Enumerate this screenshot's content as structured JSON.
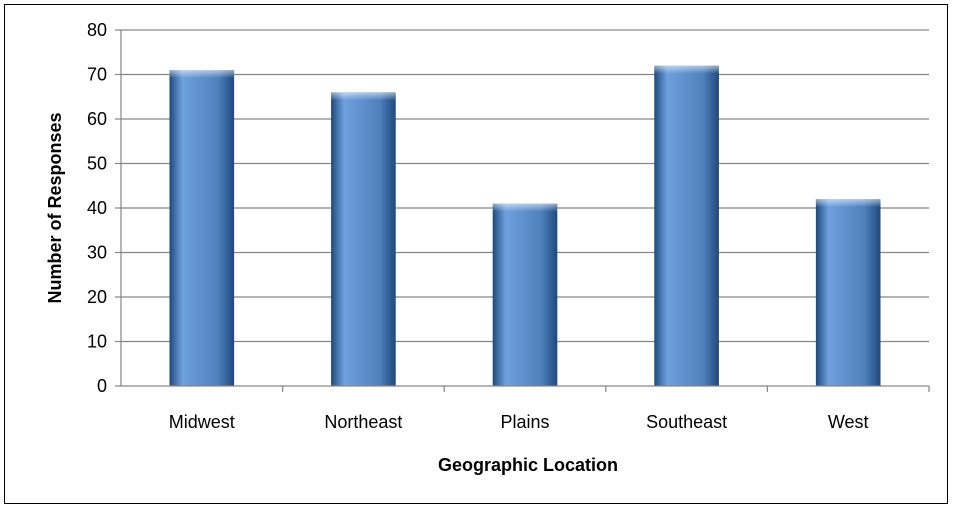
{
  "chart_data": {
    "type": "bar",
    "title": "",
    "xlabel": "Geographic Location",
    "ylabel": "Number of Responses",
    "categories": [
      "Midwest",
      "Northeast",
      "Plains",
      "Southeast",
      "West"
    ],
    "values": [
      71,
      66,
      41,
      72,
      42
    ],
    "ylim": [
      0,
      80
    ],
    "yticks": [
      0,
      10,
      20,
      30,
      40,
      50,
      60,
      70,
      80
    ],
    "grid": true,
    "legend": "none",
    "bar_color": "#4F81BD",
    "bar_color_dark": "#1F497D",
    "bar_color_light": "#6FA0DE"
  }
}
